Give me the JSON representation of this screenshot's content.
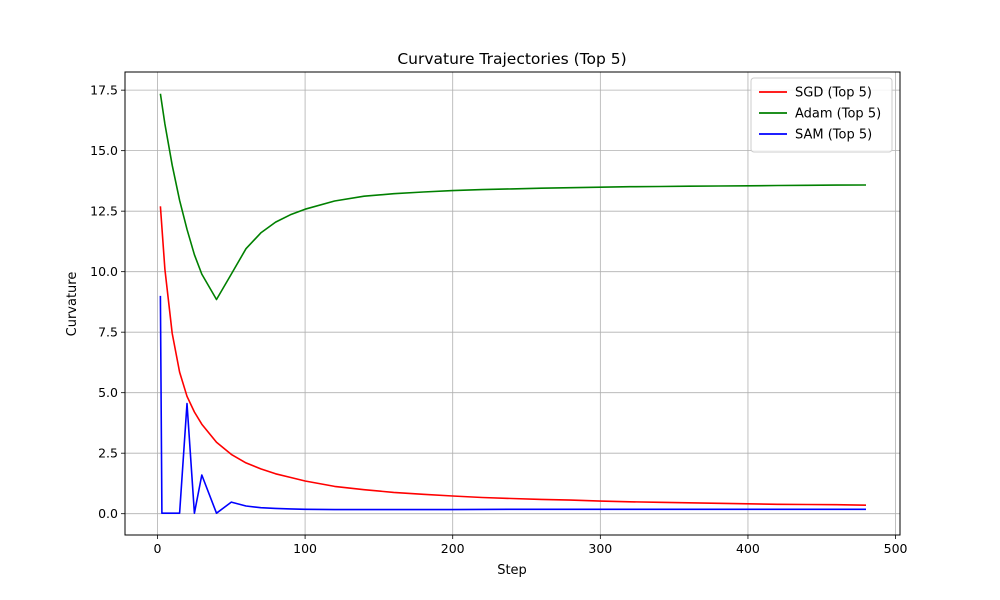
{
  "chart_data": {
    "type": "line",
    "title": "Curvature Trajectories (Top 5)",
    "xlabel": "Step",
    "ylabel": "Curvature",
    "xlim": [
      -22,
      503
    ],
    "ylim": [
      -0.88,
      18.25
    ],
    "xticks": [
      0,
      100,
      200,
      300,
      400,
      500
    ],
    "yticks": [
      0.0,
      2.5,
      5.0,
      7.5,
      10.0,
      12.5,
      15.0,
      17.5
    ],
    "xtick_labels": [
      "0",
      "100",
      "200",
      "300",
      "400",
      "500"
    ],
    "ytick_labels": [
      "0.0",
      "2.5",
      "5.0",
      "7.5",
      "10.0",
      "12.5",
      "15.0",
      "17.5"
    ],
    "grid": true,
    "legend_position": "top-right",
    "series": [
      {
        "name": "SGD (Top 5)",
        "color": "#ff0000",
        "x": [
          2,
          5,
          10,
          15,
          20,
          25,
          30,
          40,
          50,
          60,
          70,
          80,
          90,
          100,
          120,
          140,
          160,
          180,
          200,
          220,
          240,
          260,
          280,
          300,
          320,
          340,
          360,
          380,
          400,
          420,
          440,
          460,
          480
        ],
        "y": [
          12.7,
          10.1,
          7.45,
          5.85,
          4.85,
          4.2,
          3.7,
          2.95,
          2.45,
          2.1,
          1.85,
          1.65,
          1.5,
          1.35,
          1.13,
          0.99,
          0.88,
          0.8,
          0.73,
          0.67,
          0.63,
          0.59,
          0.56,
          0.52,
          0.49,
          0.47,
          0.45,
          0.43,
          0.41,
          0.39,
          0.38,
          0.37,
          0.35
        ]
      },
      {
        "name": "Adam (Top 5)",
        "color": "#008000",
        "x": [
          2,
          5,
          10,
          15,
          20,
          25,
          30,
          40,
          50,
          60,
          70,
          80,
          90,
          100,
          120,
          140,
          160,
          180,
          200,
          220,
          240,
          260,
          280,
          300,
          320,
          340,
          360,
          380,
          400,
          420,
          440,
          460,
          480
        ],
        "y": [
          17.35,
          16.1,
          14.4,
          12.95,
          11.75,
          10.7,
          9.9,
          8.85,
          9.9,
          10.95,
          11.6,
          12.05,
          12.35,
          12.58,
          12.92,
          13.12,
          13.22,
          13.29,
          13.35,
          13.39,
          13.42,
          13.45,
          13.47,
          13.49,
          13.51,
          13.52,
          13.53,
          13.54,
          13.55,
          13.56,
          13.57,
          13.575,
          13.58
        ]
      },
      {
        "name": "SAM (Top 5)",
        "color": "#0000ff",
        "x": [
          2,
          3,
          10,
          15,
          20,
          25,
          30,
          40,
          50,
          60,
          70,
          80,
          90,
          100,
          120,
          140,
          160,
          180,
          200,
          240,
          280,
          320,
          360,
          400,
          440,
          480
        ],
        "y": [
          9.0,
          0.02,
          0.02,
          0.02,
          4.55,
          0.02,
          1.6,
          0.02,
          0.48,
          0.32,
          0.25,
          0.22,
          0.2,
          0.18,
          0.17,
          0.17,
          0.17,
          0.17,
          0.17,
          0.18,
          0.18,
          0.18,
          0.18,
          0.18,
          0.18,
          0.18
        ]
      }
    ]
  }
}
